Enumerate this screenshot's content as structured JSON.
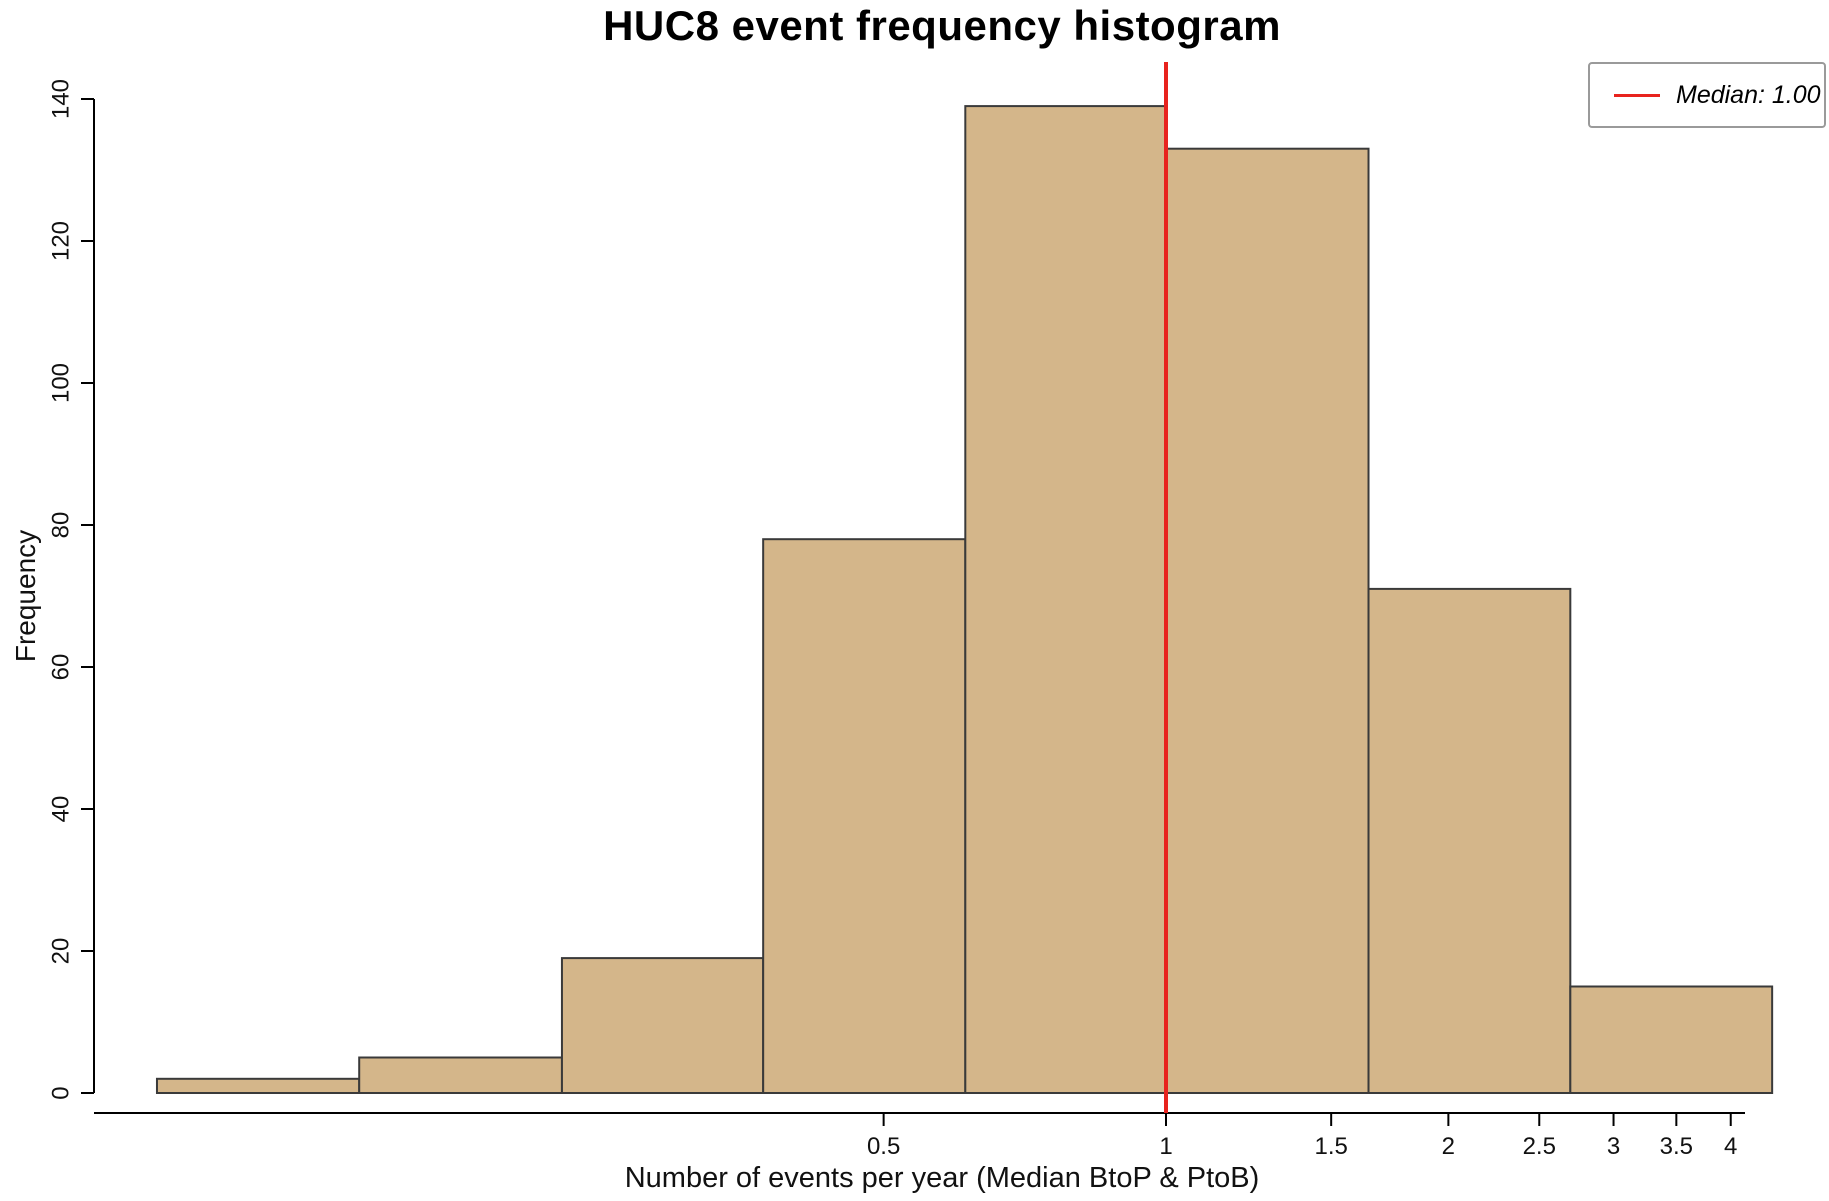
{
  "chart_data": {
    "type": "bar",
    "chart_kind": "histogram",
    "title": "HUC8 event frequency histogram",
    "xlabel": "Number of events per year (Median BtoP & PtoB)",
    "ylabel": "Frequency",
    "values": [
      2,
      5,
      19,
      78,
      139,
      133,
      71,
      15
    ],
    "bin_edges_approx": [
      0.084,
      0.138,
      0.227,
      0.372,
      0.611,
      1.0,
      1.644,
      2.698,
      4.428
    ],
    "x_scale": "log",
    "x_ticks": [
      0.5,
      1,
      1.5,
      2,
      2.5,
      3,
      3.5,
      4
    ],
    "x_tick_labels": [
      "0.5",
      "1",
      "1.5",
      "2",
      "2.5",
      "3",
      "3.5",
      "4"
    ],
    "y_ticks": [
      0,
      20,
      40,
      60,
      80,
      100,
      120,
      140
    ],
    "ylim": [
      0,
      140
    ],
    "median": 1.0,
    "legend": {
      "label": "Median: 1.00",
      "position": "top-right"
    },
    "grid": false,
    "colors": {
      "bar_fill": "#d4b68a",
      "bar_border": "#3a3a3a",
      "median_line": "#e8231e",
      "background": "#ffffff",
      "text": "#000000"
    }
  }
}
